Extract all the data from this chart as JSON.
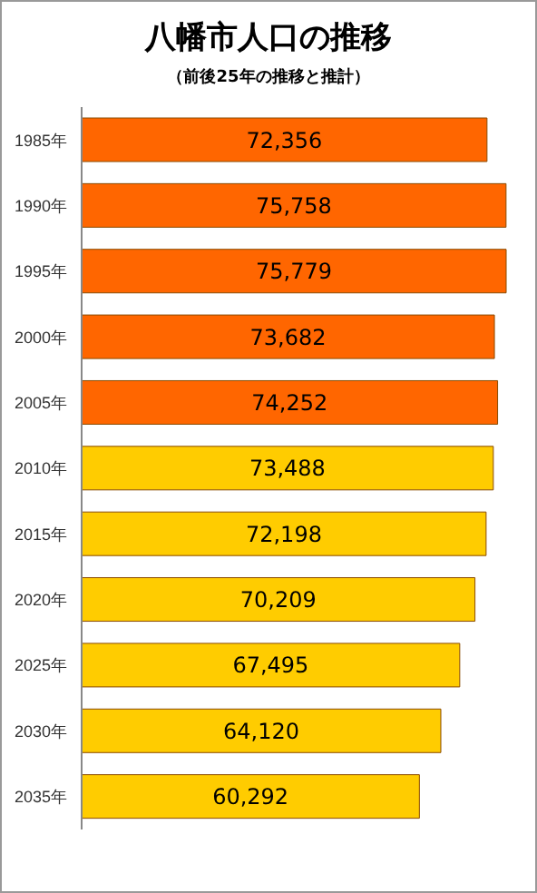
{
  "chart_data": {
    "type": "bar",
    "orientation": "horizontal",
    "title": "八幡市人口の推移",
    "subtitle": "（前後25年の推移と推計）",
    "categories": [
      "1985年",
      "1990年",
      "1995年",
      "2000年",
      "2005年",
      "2010年",
      "2015年",
      "2020年",
      "2025年",
      "2030年",
      "2035年"
    ],
    "values": [
      72356,
      75758,
      75779,
      73682,
      74252,
      73488,
      72198,
      70209,
      67495,
      64120,
      60292
    ],
    "colors": [
      "#ff6600",
      "#ff6600",
      "#ff6600",
      "#ff6600",
      "#ff6600",
      "#ffcc00",
      "#ffcc00",
      "#ffcc00",
      "#ffcc00",
      "#ffcc00",
      "#ffcc00"
    ],
    "value_labels": [
      "72,356",
      "75,758",
      "75,779",
      "73,682",
      "74,252",
      "73,488",
      "72,198",
      "70,209",
      "67,495",
      "64,120",
      "60,292"
    ],
    "grid": false,
    "legend": false
  }
}
